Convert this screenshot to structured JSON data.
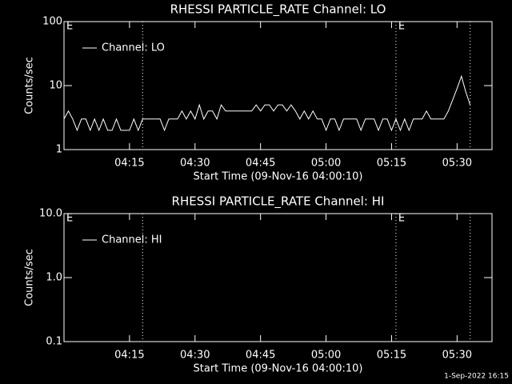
{
  "chart_data": [
    {
      "type": "line",
      "title": "RHESSI PARTICLE_RATE Channel: LO",
      "xlabel": "Start Time (09-Nov-16 04:00:10)",
      "ylabel": "Counts/sec",
      "x": [
        "04:00",
        "04:01",
        "04:02",
        "04:03",
        "04:04",
        "04:05",
        "04:06",
        "04:07",
        "04:08",
        "04:09",
        "04:10",
        "04:11",
        "04:12",
        "04:13",
        "04:14",
        "04:15",
        "04:16",
        "04:17",
        "04:18",
        "04:19",
        "04:20",
        "04:21",
        "04:22",
        "04:23",
        "04:24",
        "04:25",
        "04:26",
        "04:27",
        "04:28",
        "04:29",
        "04:30",
        "04:31",
        "04:32",
        "04:33",
        "04:34",
        "04:35",
        "04:36",
        "04:37",
        "04:38",
        "04:39",
        "04:40",
        "04:41",
        "04:42",
        "04:43",
        "04:44",
        "04:45",
        "04:46",
        "04:47",
        "04:48",
        "04:49",
        "04:50",
        "04:51",
        "04:52",
        "04:53",
        "04:54",
        "04:55",
        "04:56",
        "04:57",
        "04:58",
        "04:59",
        "05:00",
        "05:01",
        "05:02",
        "05:03",
        "05:04",
        "05:05",
        "05:06",
        "05:07",
        "05:08",
        "05:09",
        "05:10",
        "05:11",
        "05:12",
        "05:13",
        "05:14",
        "05:15",
        "05:16",
        "05:17",
        "05:18",
        "05:19",
        "05:20",
        "05:21",
        "05:22",
        "05:23",
        "05:24",
        "05:25",
        "05:26",
        "05:27",
        "05:28",
        "05:29",
        "05:30",
        "05:31",
        "05:32",
        "05:33"
      ],
      "series": [
        {
          "name": "Channel: LO",
          "color": "#ffffff",
          "values": [
            3,
            4,
            3,
            2,
            3,
            3,
            2,
            3,
            2,
            3,
            2,
            2,
            3,
            2,
            2,
            2,
            3,
            2,
            3,
            3,
            3,
            3,
            3,
            2,
            3,
            3,
            3,
            4,
            3,
            4,
            3,
            5,
            3,
            4,
            4,
            3,
            5,
            4,
            4,
            4,
            4,
            4,
            4,
            4,
            5,
            4,
            5,
            5,
            4,
            5,
            5,
            4,
            5,
            4,
            3,
            4,
            3,
            4,
            3,
            3,
            2,
            3,
            3,
            2,
            3,
            3,
            3,
            3,
            2,
            3,
            3,
            3,
            2,
            3,
            3,
            2,
            3,
            2,
            3,
            2,
            3,
            3,
            3,
            4,
            3,
            3,
            3,
            3,
            4,
            6,
            9,
            14,
            8,
            5
          ]
        }
      ],
      "xlim": [
        "04:00",
        "05:38"
      ],
      "xticks": [
        "04:15",
        "04:30",
        "04:45",
        "05:00",
        "05:15",
        "05:30"
      ],
      "ylim": [
        1,
        100
      ],
      "yticks": [
        1,
        10,
        100
      ],
      "log_y": true,
      "legend": "upper left",
      "markers": [
        "04:18",
        "05:16",
        "05:33"
      ],
      "annotations": [
        {
          "text": "E",
          "x": "04:00"
        },
        {
          "text": "E",
          "x": "05:16"
        }
      ]
    },
    {
      "type": "line",
      "title": "RHESSI PARTICLE_RATE Channel: HI",
      "xlabel": "Start Time (09-Nov-16 04:00:10)",
      "ylabel": "Counts/sec",
      "x": [],
      "series": [
        {
          "name": "Channel: HI",
          "color": "#ffffff",
          "values": []
        }
      ],
      "xlim": [
        "04:00",
        "05:38"
      ],
      "xticks": [
        "04:15",
        "04:30",
        "04:45",
        "05:00",
        "05:15",
        "05:30"
      ],
      "ylim": [
        0.1,
        10
      ],
      "yticks": [
        {
          "value": 0.1,
          "label": "0.1"
        },
        {
          "value": 1,
          "label": "1.0"
        },
        {
          "value": 10,
          "label": "10.0"
        }
      ],
      "log_y": true,
      "legend": "upper left",
      "markers": [
        "04:18",
        "05:16",
        "05:33"
      ],
      "annotations": [
        {
          "text": "E",
          "x": "04:00"
        },
        {
          "text": "E",
          "x": "05:16"
        }
      ]
    }
  ],
  "footer": "1-Sep-2022 16:15"
}
